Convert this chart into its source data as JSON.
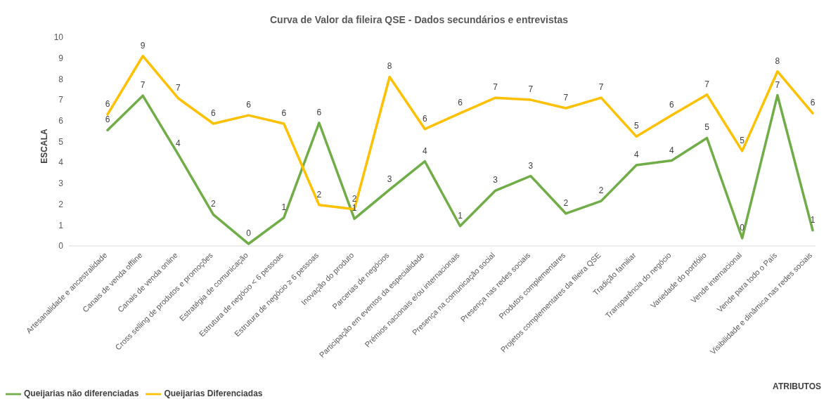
{
  "chart_data": {
    "type": "line",
    "title": "Curva de Valor da fileira QSE - Dados secundários e entrevistas",
    "xlabel": "ATRIBUTOS",
    "ylabel": "ESCALA",
    "categories": [
      "Artesanalidade e ancestralidade",
      "Canais de venda offline",
      "Canais de venda online",
      "Cross selling de produtos e promoções",
      "Estratégia de comunicação",
      "Estrutura de negócio < 6 pessoas",
      "Estrutura de negócio ≥ 6 pessoas",
      "Inovação do produto",
      "Parcerias de negócios",
      "Participação em eventos da especialidade",
      "Prémios nacionais e/ou internacionais",
      "Presença na comunicação social",
      "Presença nas redes sociais",
      "Produtos complementares",
      "Projetos complementares da fileira QSE",
      "Tradição familiar",
      "Transparência do negócio",
      "Variedade do portfólio",
      "Vende internacional",
      "Vende para todo o País",
      "Visibilidade e dinâmica nas redes sociais"
    ],
    "series": [
      {
        "name": "Queijarias não diferenciadas",
        "color": "#70ad47",
        "values": [
          5.55,
          7.2,
          4.4,
          1.5,
          0.1,
          1.35,
          5.9,
          1.3,
          2.7,
          4.05,
          0.95,
          2.65,
          3.35,
          1.55,
          2.15,
          3.87,
          4.09,
          5.17,
          0.37,
          7.22,
          0.75
        ],
        "value_labels": [
          "6",
          "7",
          "4",
          "2",
          "0",
          "1",
          "6",
          "1",
          "3",
          "4",
          "1",
          "3",
          "3",
          "2",
          "2",
          "4",
          "4",
          "5",
          "0",
          "7",
          "1"
        ]
      },
      {
        "name": "Queijarias Diferenciadas",
        "color": "#ffc000",
        "values": [
          6.3,
          9.1,
          7.08,
          5.86,
          6.26,
          5.86,
          1.96,
          1.76,
          8.1,
          5.6,
          6.36,
          7.1,
          7.0,
          6.6,
          7.1,
          5.24,
          6.26,
          7.25,
          4.55,
          8.36,
          6.36
        ],
        "value_labels": [
          "6",
          "9",
          "7",
          "6",
          "6",
          "6",
          "2",
          "2",
          "8",
          "6",
          "6",
          "7",
          "7",
          "7",
          "7",
          "5",
          "6",
          "7",
          "5",
          "8",
          "6"
        ]
      }
    ],
    "ylim": [
      0,
      10
    ],
    "yticks": [
      0,
      1,
      2,
      3,
      4,
      5,
      6,
      7,
      8,
      9,
      10
    ],
    "grid": false,
    "legend": "bottom left",
    "marker": "none",
    "line_style": "solid"
  }
}
